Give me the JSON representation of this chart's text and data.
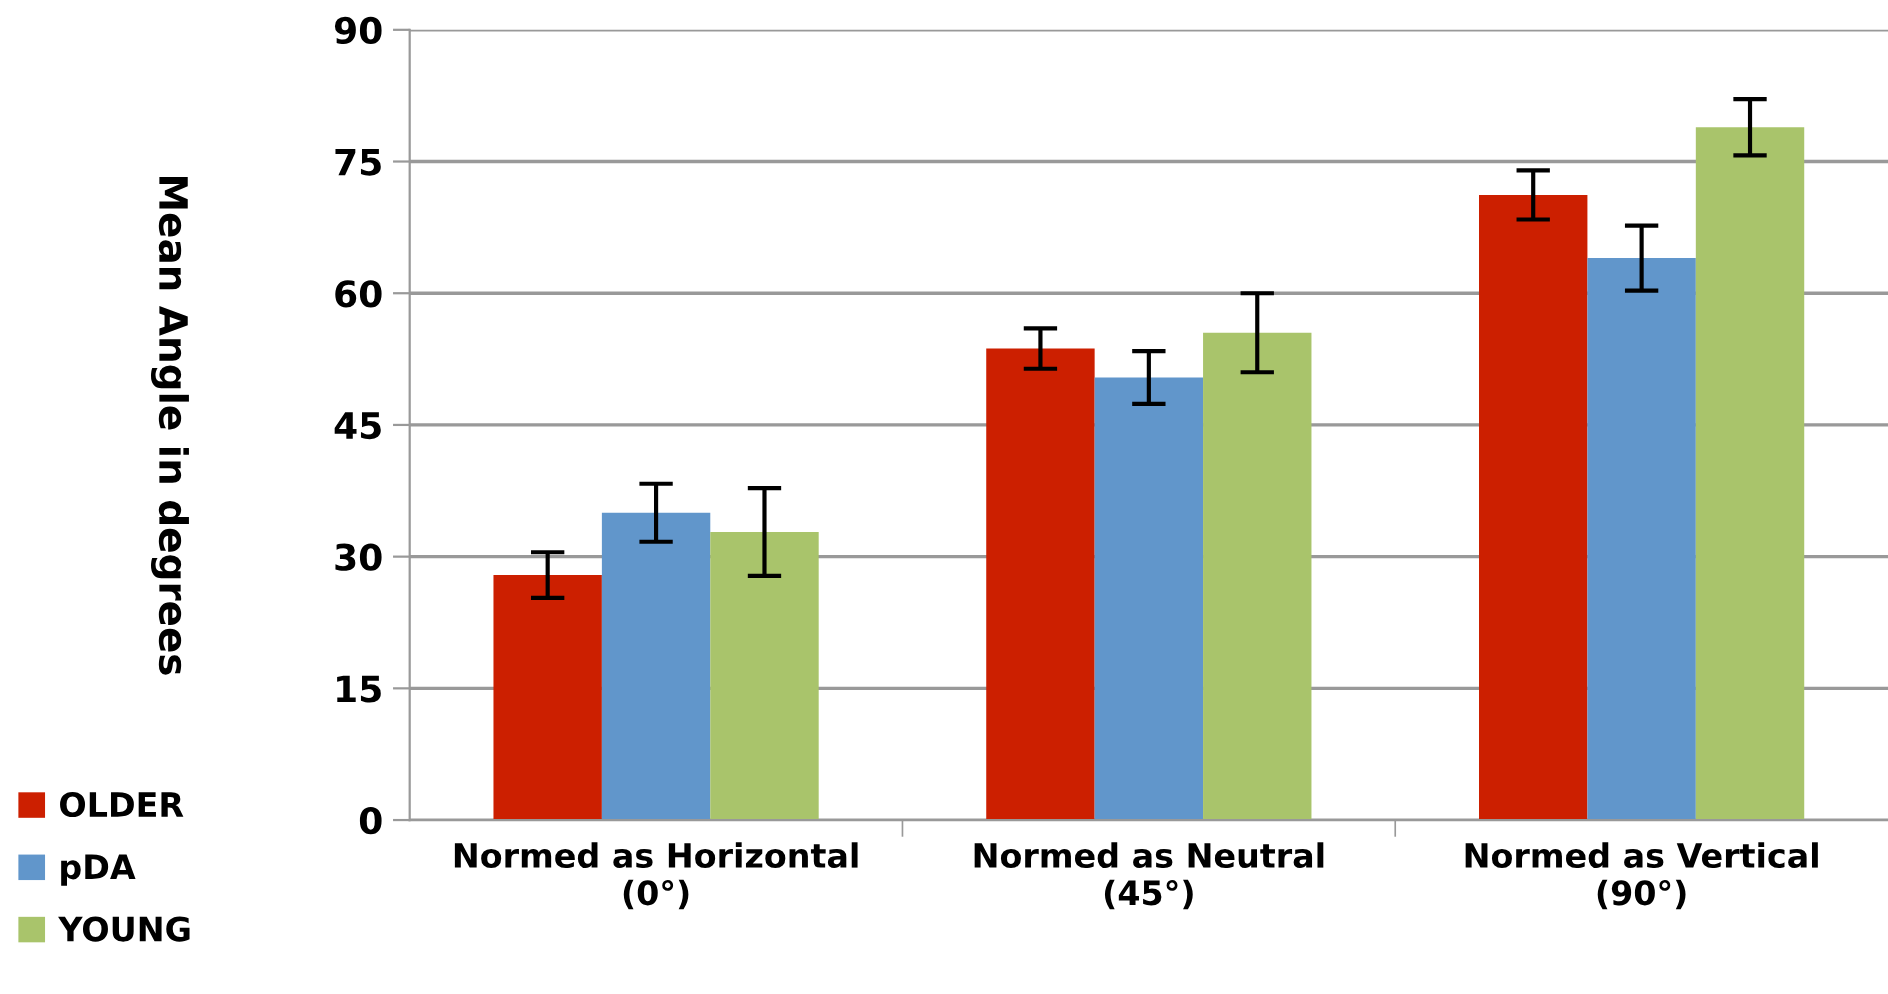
{
  "chart_data": {
    "type": "bar",
    "ylabel": "Mean Angle in degrees",
    "categories": [
      "Normed as Horizontal\n(0°)",
      "Normed as Neutral\n(45°)",
      "Normed as Vertical\n(90°)"
    ],
    "series": [
      {
        "name": "OLDER",
        "color": "#cc1f00",
        "values": [
          27.9,
          53.7,
          71.2
        ],
        "errors": [
          2.6,
          2.3,
          2.8
        ]
      },
      {
        "name": "pDA",
        "color": "#6196cb",
        "values": [
          35.0,
          50.4,
          64.0
        ],
        "errors": [
          3.3,
          3.0,
          3.7
        ]
      },
      {
        "name": "YOUNG",
        "color": "#a9c46b",
        "values": [
          32.8,
          55.5,
          78.9
        ],
        "errors": [
          5.0,
          4.5,
          3.2
        ]
      }
    ],
    "ylim": [
      0,
      90
    ],
    "yticks": [
      0,
      15,
      30,
      45,
      60,
      75,
      90
    ],
    "grid": "y",
    "legend": "bottom left"
  }
}
